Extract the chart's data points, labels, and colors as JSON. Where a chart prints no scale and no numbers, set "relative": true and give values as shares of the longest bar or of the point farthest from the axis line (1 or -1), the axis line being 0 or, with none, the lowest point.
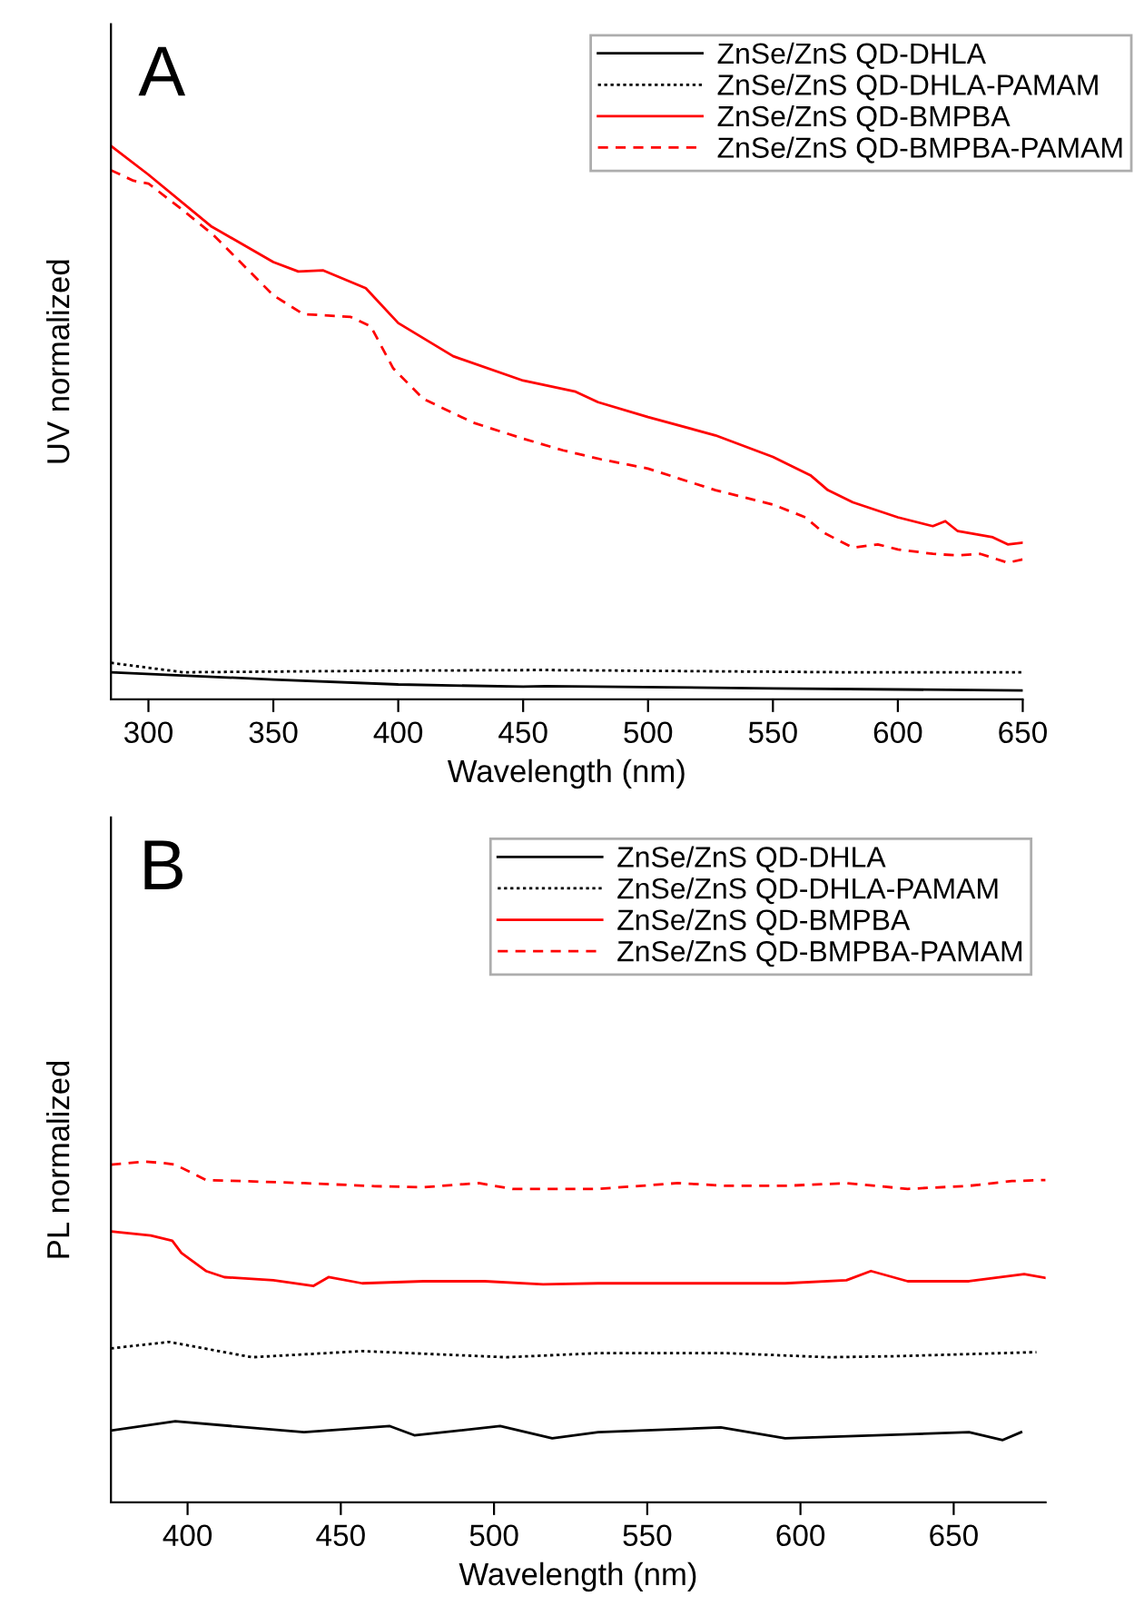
{
  "chart_data": [
    {
      "type": "line",
      "relative": true,
      "xlabel": "Wavelength (nm)",
      "ylabel": "UV normalized",
      "annotations": [
        "A"
      ],
      "xlim": [
        285,
        650
      ],
      "xticks": [
        300,
        350,
        400,
        450,
        500,
        550,
        600,
        650
      ],
      "legend": "top right",
      "grid": false,
      "series": [
        {
          "name": "ZnSe/ZnS QD-DHLA",
          "color": "#000000",
          "line_style": "solid",
          "x": [
            285,
            350,
            400,
            450,
            459,
            550,
            650
          ],
          "values": [
            0.049,
            0.036,
            0.027,
            0.023,
            0.024,
            0.02,
            0.016
          ]
        },
        {
          "name": "ZnSe/ZnS QD-DHLA-PAMAM",
          "color": "#000000",
          "line_style": "dotted",
          "x": [
            285,
            314,
            400,
            459,
            580,
            650
          ],
          "values": [
            0.066,
            0.049,
            0.052,
            0.053,
            0.049,
            0.049
          ]
        },
        {
          "name": "ZnSe/ZnS QD-BMPBA",
          "color": "#ff0000",
          "line_style": "solid",
          "x": [
            285,
            300,
            325,
            350,
            360,
            370,
            387,
            400,
            422,
            450,
            471,
            480,
            500,
            527,
            550,
            565,
            572,
            582,
            600,
            614,
            619,
            624,
            638,
            644,
            650
          ],
          "values": [
            1.0,
            0.948,
            0.855,
            0.79,
            0.773,
            0.775,
            0.743,
            0.68,
            0.62,
            0.576,
            0.556,
            0.537,
            0.51,
            0.477,
            0.438,
            0.405,
            0.378,
            0.356,
            0.329,
            0.313,
            0.322,
            0.304,
            0.293,
            0.28,
            0.283
          ]
        },
        {
          "name": "ZnSe/ZnS QD-BMPBA-PAMAM",
          "color": "#ff0000",
          "line_style": "dashed",
          "x": [
            285,
            294,
            300,
            314,
            326,
            350,
            362,
            381,
            389,
            398,
            410,
            430,
            450,
            466,
            481,
            500,
            527,
            550,
            563,
            570,
            582,
            592,
            600,
            614,
            624,
            633,
            644,
            650
          ],
          "values": [
            0.956,
            0.937,
            0.932,
            0.883,
            0.839,
            0.73,
            0.696,
            0.691,
            0.674,
            0.598,
            0.543,
            0.5,
            0.471,
            0.45,
            0.434,
            0.417,
            0.378,
            0.352,
            0.329,
            0.302,
            0.274,
            0.28,
            0.271,
            0.263,
            0.26,
            0.263,
            0.247,
            0.253
          ]
        }
      ]
    },
    {
      "type": "line",
      "relative": true,
      "xlabel": "Wavelength (nm)",
      "ylabel": "PL normalized",
      "annotations": [
        "B"
      ],
      "xlim": [
        375,
        680
      ],
      "xticks": [
        400,
        450,
        500,
        550,
        600,
        650
      ],
      "legend": "top right",
      "grid": false,
      "series": [
        {
          "name": "ZnSe/ZnS QD-DHLA",
          "color": "#000000",
          "line_style": "solid",
          "x": [
            375,
            396,
            438,
            466,
            474,
            502,
            519,
            534,
            574,
            595,
            655,
            666,
            672
          ],
          "values": [
            0.211,
            0.238,
            0.206,
            0.224,
            0.197,
            0.224,
            0.188,
            0.206,
            0.22,
            0.188,
            0.206,
            0.183,
            0.206
          ]
        },
        {
          "name": "ZnSe/ZnS QD-DHLA-PAMAM",
          "color": "#000000",
          "line_style": "dotted",
          "x": [
            375,
            394,
            421,
            457,
            504,
            534,
            576,
            609,
            631,
            677
          ],
          "values": [
            0.452,
            0.471,
            0.426,
            0.444,
            0.426,
            0.438,
            0.438,
            0.426,
            0.429,
            0.441
          ]
        },
        {
          "name": "ZnSe/ZnS QD-BMPBA",
          "color": "#ff0000",
          "line_style": "solid",
          "x": [
            375,
            388,
            395,
            398,
            406,
            412,
            428,
            441,
            446,
            457,
            477,
            497,
            516,
            534,
            560,
            595,
            615,
            623,
            635,
            655,
            673,
            680
          ],
          "values": [
            0.795,
            0.783,
            0.768,
            0.732,
            0.679,
            0.661,
            0.652,
            0.635,
            0.661,
            0.643,
            0.649,
            0.649,
            0.64,
            0.643,
            0.643,
            0.643,
            0.652,
            0.679,
            0.649,
            0.649,
            0.67,
            0.659
          ]
        },
        {
          "name": "ZnSe/ZnS QD-BMPBA-PAMAM",
          "color": "#ff0000",
          "line_style": "dashed",
          "x": [
            375,
            386,
            392,
            396,
            406,
            418,
            438,
            461,
            477,
            495,
            506,
            534,
            560,
            576,
            595,
            615,
            635,
            655,
            669,
            680
          ],
          "values": [
            0.991,
            1.0,
            0.996,
            0.991,
            0.946,
            0.943,
            0.937,
            0.928,
            0.925,
            0.937,
            0.92,
            0.92,
            0.937,
            0.929,
            0.929,
            0.937,
            0.92,
            0.929,
            0.943,
            0.946
          ]
        }
      ]
    }
  ]
}
